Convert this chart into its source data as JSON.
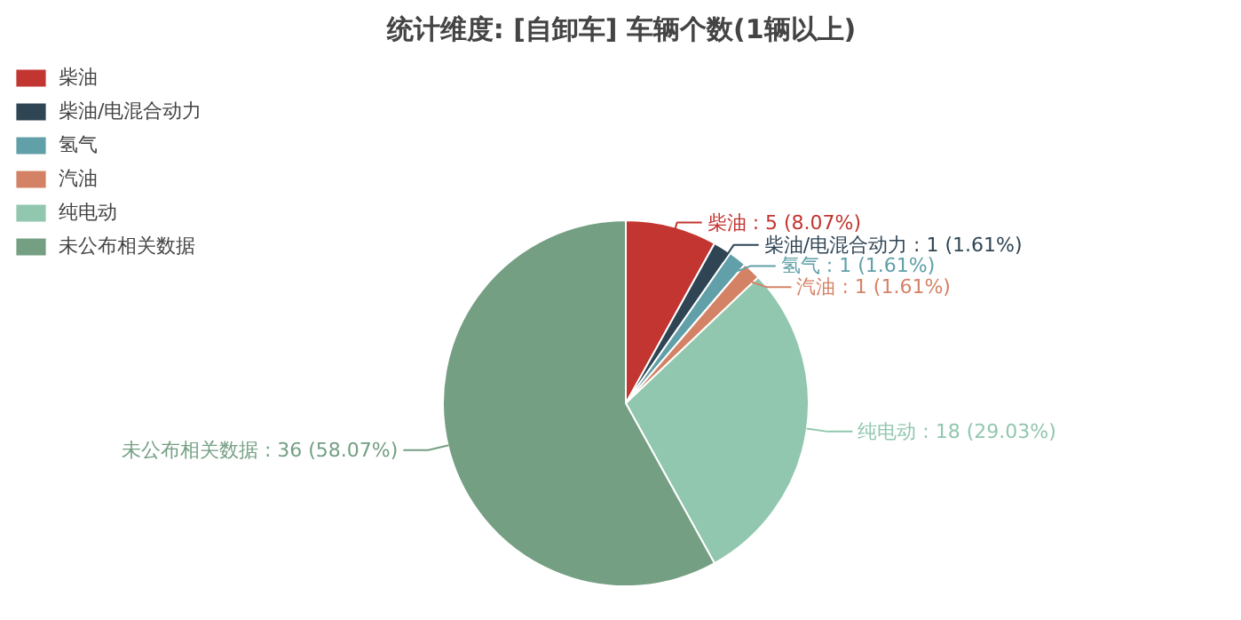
{
  "chart_data": {
    "type": "pie",
    "title": "统计维度: [自卸车] 车辆个数(1辆以上)",
    "categories": [
      "柴油",
      "柴油/电混合动力",
      "氢气",
      "汽油",
      "纯电动",
      "未公布相关数据"
    ],
    "values": [
      5,
      1,
      1,
      1,
      18,
      36
    ],
    "colors": [
      "#c23531",
      "#2f4554",
      "#61a0a8",
      "#d48265",
      "#91c7ae",
      "#749f83"
    ],
    "value_labels": [
      "柴油 : 5 (8.07%)",
      "柴油/电混合动力 : 1 (1.61%)",
      "氢气 : 1 (1.61%)",
      "汽油 : 1 (1.61%)",
      "纯电动 : 18 (29.03%)",
      "未公布相关数据 : 36 (58.07%)"
    ],
    "legend": "top left"
  }
}
